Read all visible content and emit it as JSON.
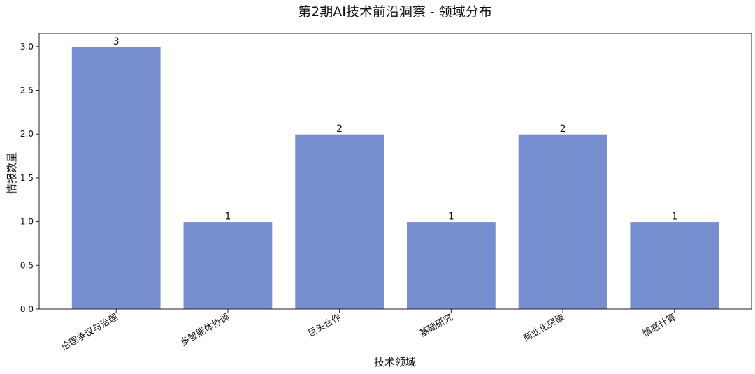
{
  "chart_data": {
    "type": "bar",
    "title": "第2期AI技术前沿洞察 - 领域分布",
    "xlabel": "技术领域",
    "ylabel": "情报数量",
    "categories": [
      "伦理争议与治理",
      "多智能体协调",
      "巨头合作",
      "基础研究",
      "商业化突破",
      "情感计算"
    ],
    "values": [
      3,
      1,
      2,
      1,
      2,
      1
    ],
    "data_labels": [
      "3",
      "1",
      "2",
      "1",
      "2",
      "1"
    ],
    "ylim": [
      0,
      3.15
    ],
    "yticks": [
      0.0,
      0.5,
      1.0,
      1.5,
      2.0,
      2.5,
      3.0
    ],
    "ytick_labels": [
      "0.0",
      "0.5",
      "1.0",
      "1.5",
      "2.0",
      "2.5",
      "3.0"
    ],
    "grid": false,
    "bar_color": "#768dcf",
    "bar_edge_color": "#ffffff"
  }
}
